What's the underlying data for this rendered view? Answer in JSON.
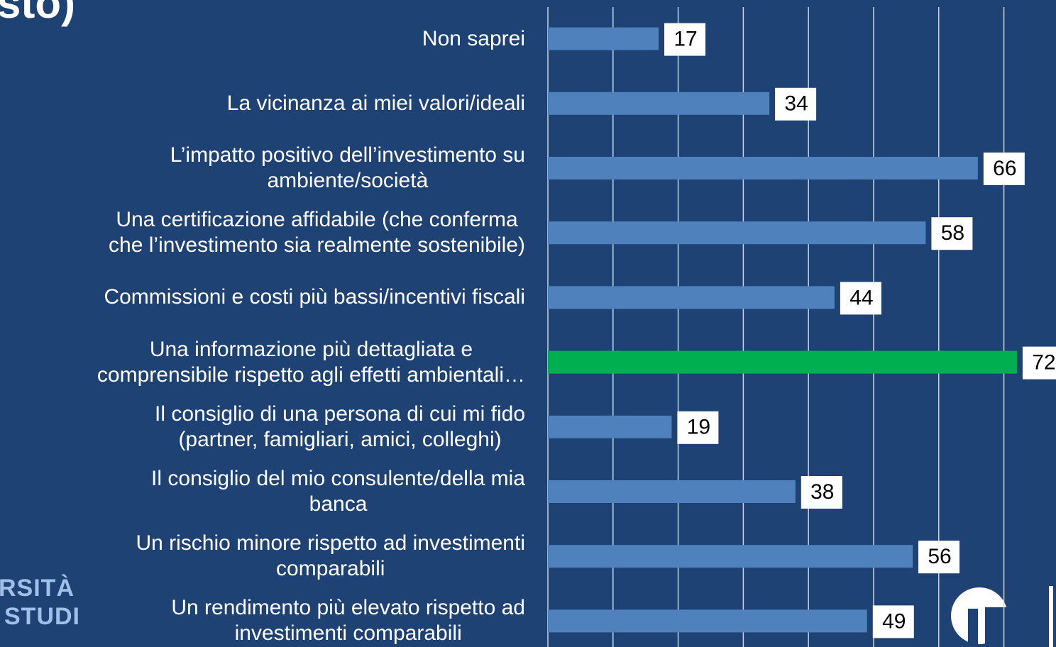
{
  "title_fragment": "sto)",
  "logo_text": [
    "RSITÀ",
    "STUDI"
  ],
  "chart_data": {
    "type": "barh",
    "categories": [
      "Non saprei",
      "La vicinanza ai miei valori/ideali",
      "L’impatto positivo dell’investimento su\nambiente/società",
      "Una certificazione affidabile (che conferma\nche l’investimento sia realmente sostenibile)",
      "Commissioni e costi più bassi/incentivi fiscali",
      "Una informazione più dettagliata e\ncomprensibile rispetto agli effetti ambientali…",
      "Il consiglio di una persona di cui mi fido\n(partner, famigliari, amici, colleghi)",
      "Il consiglio del mio consulente/della mia\nbanca",
      "Un rischio minore rispetto ad investimenti\ncomparabili",
      "Un rendimento più elevato rispetto ad\ninvestimenti comparabili"
    ],
    "values": [
      17,
      34,
      66,
      58,
      44,
      72,
      19,
      38,
      56,
      49
    ],
    "colors": [
      "#4f81bd",
      "#4f81bd",
      "#4f81bd",
      "#4f81bd",
      "#4f81bd",
      "#00b050",
      "#4f81bd",
      "#4f81bd",
      "#4f81bd",
      "#4f81bd"
    ],
    "xlim": [
      0,
      78
    ],
    "xgrid": [
      0,
      10,
      20,
      30,
      40,
      50,
      60,
      70
    ]
  }
}
